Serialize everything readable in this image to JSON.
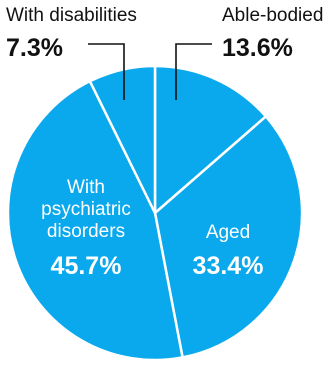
{
  "chart_data": {
    "type": "pie",
    "title": "",
    "slices": [
      {
        "label": "Able-bodied",
        "label_lines": [
          "Able-bodied"
        ],
        "value": 13.6,
        "value_label": "13.6%",
        "label_placement": "outside"
      },
      {
        "label": "Aged",
        "label_lines": [
          "Aged"
        ],
        "value": 33.4,
        "value_label": "33.4%",
        "label_placement": "inside"
      },
      {
        "label": "With psychiatric disorders",
        "label_lines": [
          "With",
          "psychiatric",
          "disorders"
        ],
        "value": 45.7,
        "value_label": "45.7%",
        "label_placement": "inside"
      },
      {
        "label": "With disabilities",
        "label_lines": [
          "With disabilities"
        ],
        "value": 7.3,
        "value_label": "7.3%",
        "label_placement": "outside"
      }
    ],
    "start_angle_deg": 0,
    "direction": "clockwise",
    "colors": {
      "slice_fill": "#0aa8ec",
      "slice_border": "#ffffff",
      "inside_text": "#ffffff",
      "outside_text": "#111111",
      "leader_line": "#111111"
    },
    "legend": "none"
  }
}
